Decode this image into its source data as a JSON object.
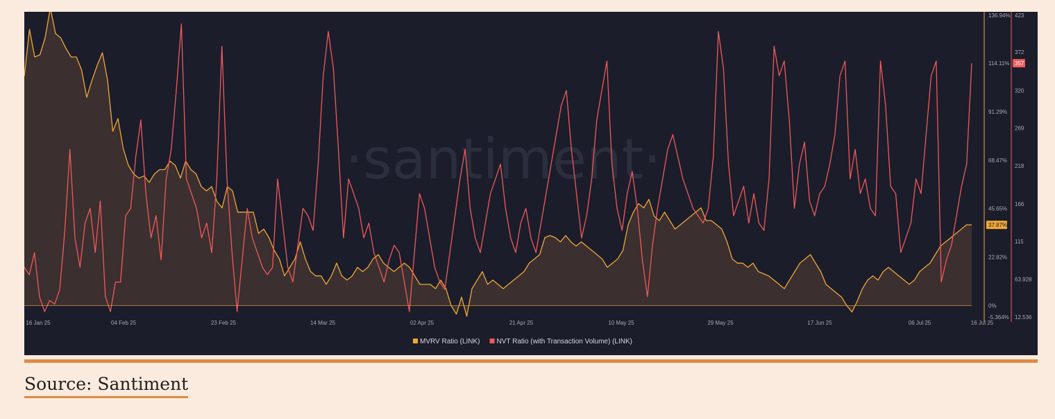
{
  "source_text": "Source: Santiment",
  "colors": {
    "mvrv": "#f0a838",
    "nvt": "#f05a5a",
    "background": "#1b1d2b",
    "accent": "#e08a43"
  },
  "chart_data": {
    "type": "line",
    "watermark": "·santiment·",
    "x_tick_labels": [
      "16 Jan 25",
      "04 Feb 25",
      "23 Feb 25",
      "14 Mar 25",
      "02 Apr 25",
      "21 Apr 25",
      "10 May 25",
      "29 May 25",
      "17 Jun 25",
      "06 Jul 25",
      "16 Jul 25"
    ],
    "legend_placement": "bottom-center",
    "left_axis": {
      "series": "MVRV Ratio (LINK)",
      "tick_labels": [
        "136.94%",
        "114.11%",
        "91.29%",
        "68.47%",
        "45.65%",
        "22.82%",
        "0%",
        "-5.364%"
      ],
      "tick_values": [
        136.94,
        114.11,
        91.29,
        68.47,
        45.65,
        22.82,
        0,
        -5.364
      ],
      "ylim": [
        -5.364,
        136.94
      ],
      "current_label": "37.87%"
    },
    "right_axis": {
      "series": "NVT Ratio (with Transaction Volume) (LINK)",
      "tick_labels": [
        "423",
        "372",
        "320",
        "269",
        "218",
        "166",
        "115",
        "63.928",
        "12.536"
      ],
      "tick_values": [
        423,
        372,
        320,
        269,
        218,
        166,
        115,
        63.928,
        12.536
      ],
      "ylim": [
        12.536,
        423
      ],
      "current_label": "357"
    },
    "series": [
      {
        "name": "MVRV Ratio (LINK)",
        "axis": "left",
        "style": "area",
        "values": [
          108,
          130,
          117,
          118,
          126,
          140,
          128,
          126,
          121,
          117,
          117,
          111,
          98,
          106,
          113,
          119,
          106,
          82,
          88,
          74,
          66,
          62,
          60,
          61,
          58,
          62,
          64,
          64,
          68,
          66,
          60,
          68,
          64,
          62,
          56,
          54,
          56,
          49,
          46,
          56,
          54,
          44,
          44,
          44,
          44,
          34,
          36,
          32,
          26,
          22,
          14,
          18,
          22,
          30,
          22,
          16,
          14,
          14,
          10,
          14,
          20,
          14,
          12,
          14,
          18,
          16,
          18,
          22,
          24,
          20,
          18,
          16,
          18,
          20,
          18,
          14,
          10,
          10,
          10,
          8,
          12,
          8,
          0,
          -4,
          4,
          -5,
          8,
          12,
          16,
          10,
          12,
          10,
          8,
          10,
          12,
          14,
          16,
          20,
          22,
          24,
          32,
          33,
          32,
          30,
          33,
          30,
          28,
          30,
          28,
          26,
          24,
          22,
          18,
          20,
          22,
          26,
          38,
          44,
          48,
          46,
          50,
          42,
          40,
          44,
          40,
          36,
          38,
          40,
          42,
          44,
          46,
          40,
          40,
          38,
          36,
          30,
          22,
          20,
          20,
          18,
          20,
          16,
          15,
          14,
          12,
          10,
          8,
          12,
          16,
          20,
          22,
          24,
          20,
          16,
          10,
          8,
          6,
          4,
          0,
          -3,
          2,
          8,
          12,
          14,
          12,
          16,
          18,
          16,
          14,
          12,
          10,
          12,
          16,
          18,
          20,
          24,
          28,
          30,
          32,
          34,
          36,
          38,
          38
        ]
      },
      {
        "name": "NVT Ratio (with Transaction Volume) (LINK)",
        "axis": "right",
        "style": "line",
        "values": [
          80,
          70,
          100,
          40,
          20,
          35,
          30,
          50,
          130,
          240,
          120,
          80,
          140,
          160,
          100,
          170,
          40,
          20,
          60,
          60,
          150,
          160,
          230,
          280,
          180,
          120,
          150,
          90,
          200,
          240,
          320,
          410,
          200,
          180,
          160,
          120,
          140,
          100,
          200,
          380,
          200,
          100,
          20,
          90,
          160,
          120,
          100,
          80,
          70,
          80,
          200,
          140,
          80,
          60,
          110,
          160,
          150,
          130,
          220,
          340,
          400,
          350,
          240,
          120,
          200,
          180,
          160,
          120,
          140,
          100,
          80,
          60,
          90,
          110,
          100,
          60,
          20,
          100,
          180,
          160,
          120,
          80,
          60,
          50,
          100,
          150,
          200,
          240,
          160,
          120,
          100,
          140,
          180,
          200,
          220,
          160,
          120,
          100,
          140,
          160,
          120,
          100,
          140,
          180,
          220,
          260,
          300,
          320,
          240,
          180,
          120,
          150,
          200,
          280,
          320,
          360,
          220,
          160,
          130,
          180,
          210,
          160,
          90,
          40,
          110,
          160,
          200,
          240,
          260,
          230,
          200,
          180,
          160,
          150,
          140,
          160,
          230,
          400,
          350,
          220,
          150,
          170,
          190,
          140,
          180,
          140,
          130,
          200,
          380,
          340,
          360,
          280,
          160,
          220,
          250,
          170,
          150,
          180,
          190,
          220,
          260,
          340,
          360,
          200,
          240,
          180,
          200,
          160,
          150,
          360,
          300,
          190,
          180,
          100,
          120,
          140,
          200,
          180,
          260,
          340,
          360,
          60,
          90,
          110,
          150,
          190,
          220,
          357
        ]
      }
    ]
  }
}
